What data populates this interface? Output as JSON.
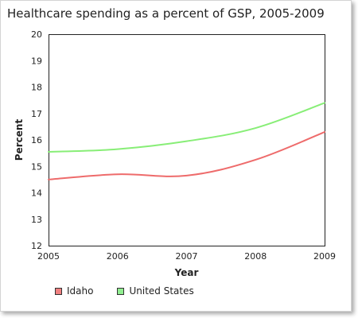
{
  "chart_data": {
    "type": "line",
    "title": "Healthcare spending as a percent of GSP, 2005-2009",
    "xlabel": "Year",
    "ylabel": "Percent",
    "x": [
      2005,
      2006,
      2007,
      2008,
      2009
    ],
    "xlim": [
      2005,
      2009
    ],
    "ylim": [
      12,
      20
    ],
    "yticks": [
      12,
      13,
      14,
      15,
      16,
      17,
      18,
      19,
      20
    ],
    "grid": false,
    "legend_position": "bottom-left",
    "series": [
      {
        "name": "Idaho",
        "color": "#ee6b6b",
        "swatch_color": "#f08080",
        "values": [
          14.5,
          14.7,
          14.65,
          15.25,
          16.3
        ]
      },
      {
        "name": "United States",
        "color": "#88ee77",
        "swatch_color": "#90ee90",
        "values": [
          15.55,
          15.65,
          15.95,
          16.45,
          17.4
        ]
      }
    ]
  }
}
